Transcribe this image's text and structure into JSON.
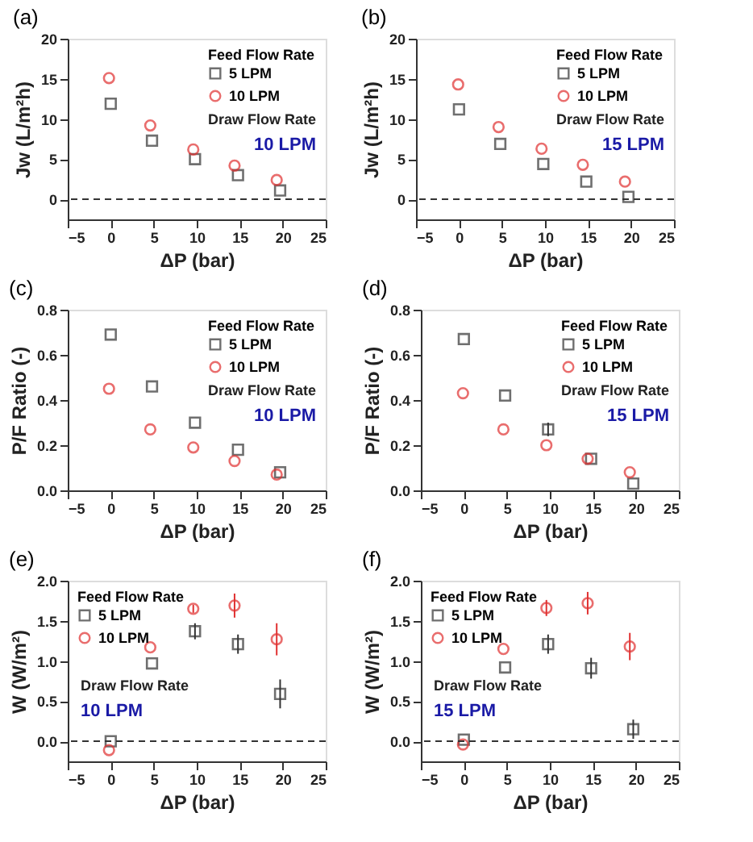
{
  "chart_data": [
    {
      "type": "scatter",
      "title": "(a)",
      "xlabel": "ΔP (bar)",
      "ylabel": "Jw (L/m²h)",
      "legend_title": "Feed Flow Rate",
      "legend": "top right",
      "grid": false,
      "xlim": [
        -5,
        25
      ],
      "xticks": [
        -5,
        0,
        5,
        10,
        15,
        20,
        25
      ],
      "ylim": [
        -2.5,
        20
      ],
      "yticks": [
        0,
        5,
        10,
        15,
        20
      ],
      "series": [
        {
          "name": "5 LPM",
          "color": "#333333",
          "marker": "square",
          "x": [
            0,
            4.8,
            9.8,
            14.8,
            19.7
          ],
          "values": [
            11.9,
            7.3,
            5.0,
            3.0,
            1.1
          ]
        },
        {
          "name": "10 LPM",
          "color": "#e03030",
          "marker": "circle",
          "x": [
            -0.2,
            4.6,
            9.6,
            14.4,
            19.3
          ],
          "values": [
            15.1,
            9.2,
            6.2,
            4.2,
            2.4
          ]
        }
      ],
      "ref_lines": [
        {
          "axis": "y",
          "value": 0,
          "line_style": "dashed",
          "color": "#333333"
        }
      ],
      "annotations": [
        "Draw Flow Rate",
        "10 LPM"
      ]
    },
    {
      "type": "scatter",
      "title": "(b)",
      "xlabel": "ΔP (bar)",
      "ylabel": "Jw (L/m²h)",
      "legend_title": "Feed Flow Rate",
      "legend": "top right",
      "grid": false,
      "xlim": [
        -5,
        25
      ],
      "xticks": [
        -5,
        0,
        5,
        10,
        15,
        20,
        25
      ],
      "ylim": [
        -2.5,
        20
      ],
      "yticks": [
        0,
        5,
        10,
        15,
        20
      ],
      "series": [
        {
          "name": "5 LPM",
          "color": "#333333",
          "marker": "square",
          "x": [
            0,
            4.8,
            9.8,
            14.8,
            19.7
          ],
          "values": [
            11.2,
            6.9,
            4.4,
            2.2,
            0.3
          ]
        },
        {
          "name": "10 LPM",
          "color": "#e03030",
          "marker": "circle",
          "x": [
            -0.1,
            4.6,
            9.6,
            14.4,
            19.3
          ],
          "values": [
            14.3,
            9.0,
            6.3,
            4.3,
            2.2
          ]
        }
      ],
      "ref_lines": [
        {
          "axis": "y",
          "value": 0,
          "line_style": "dashed",
          "color": "#333333"
        }
      ],
      "annotations": [
        "Draw Flow Rate",
        "15 LPM"
      ]
    },
    {
      "type": "scatter",
      "title": "(c)",
      "xlabel": "ΔP (bar)",
      "ylabel": "P/F Ratio (-)",
      "legend_title": "Feed Flow Rate",
      "legend": "top right",
      "grid": false,
      "xlim": [
        -5,
        25
      ],
      "xticks": [
        -5,
        0,
        5,
        10,
        15,
        20,
        25
      ],
      "ylim": [
        0,
        0.8
      ],
      "yticks": [
        {
          "value": 0,
          "label": "0.0"
        },
        0.2,
        0.4,
        0.6,
        0.8
      ],
      "series": [
        {
          "name": "5 LPM",
          "color": "#333333",
          "marker": "square",
          "x": [
            0,
            4.8,
            9.8,
            14.8,
            19.7
          ],
          "values": [
            0.69,
            0.46,
            0.3,
            0.18,
            0.08
          ]
        },
        {
          "name": "10 LPM",
          "color": "#e03030",
          "marker": "circle",
          "x": [
            -0.2,
            4.6,
            9.6,
            14.4,
            19.3
          ],
          "values": [
            0.45,
            0.27,
            0.19,
            0.13,
            0.07
          ]
        }
      ],
      "annotations": [
        "Draw Flow Rate",
        "10 LPM"
      ]
    },
    {
      "type": "scatter",
      "title": "(d)",
      "xlabel": "ΔP (bar)",
      "ylabel": "P/F Ratio (-)",
      "legend_title": "Feed Flow Rate",
      "legend": "top right",
      "grid": false,
      "xlim": [
        -5,
        25
      ],
      "xticks": [
        -5,
        0,
        5,
        10,
        15,
        20,
        25
      ],
      "ylim": [
        0,
        0.8
      ],
      "yticks": [
        {
          "value": 0,
          "label": "0.0"
        },
        0.2,
        0.4,
        0.6,
        0.8
      ],
      "series": [
        {
          "name": "5 LPM",
          "color": "#333333",
          "marker": "square",
          "x": [
            0,
            4.8,
            9.8,
            14.8,
            19.7
          ],
          "values": [
            0.67,
            0.42,
            0.27,
            0.14,
            0.03
          ],
          "errors": [
            null,
            null,
            0.03,
            null,
            null
          ]
        },
        {
          "name": "10 LPM",
          "color": "#e03030",
          "marker": "circle",
          "x": [
            -0.1,
            4.6,
            9.6,
            14.4,
            19.3
          ],
          "values": [
            0.43,
            0.27,
            0.2,
            0.14,
            0.08
          ]
        }
      ],
      "annotations": [
        "Draw Flow Rate",
        "15 LPM"
      ]
    },
    {
      "type": "scatter",
      "title": "(e)",
      "xlabel": "ΔP (bar)",
      "ylabel": "W (W/m²)",
      "legend_title": "Feed Flow Rate",
      "legend": "top left",
      "grid": false,
      "xlim": [
        -5,
        25
      ],
      "xticks": [
        -5,
        0,
        5,
        10,
        15,
        20,
        25
      ],
      "ylim": [
        -0.25,
        2.0
      ],
      "yticks": [
        {
          "value": 0,
          "label": "0.0"
        },
        0.5,
        {
          "value": 1,
          "label": "1.0"
        },
        1.5,
        {
          "value": 2,
          "label": "2.0"
        }
      ],
      "series": [
        {
          "name": "5 LPM",
          "color": "#333333",
          "marker": "square",
          "x": [
            0,
            4.8,
            9.8,
            14.8,
            19.7
          ],
          "values": [
            0.0,
            0.97,
            1.37,
            1.21,
            0.59
          ],
          "errors": [
            null,
            null,
            0.1,
            0.12,
            0.18
          ]
        },
        {
          "name": "10 LPM",
          "color": "#e03030",
          "marker": "circle",
          "x": [
            -0.2,
            4.6,
            9.6,
            14.4,
            19.3
          ],
          "values": [
            -0.11,
            1.17,
            1.65,
            1.69,
            1.27
          ],
          "errors": [
            null,
            null,
            0.05,
            0.15,
            0.2
          ]
        }
      ],
      "ref_lines": [
        {
          "axis": "y",
          "value": 0,
          "line_style": "dashed",
          "color": "#333333"
        }
      ],
      "annotations": [
        "Draw Flow Rate",
        "10 LPM"
      ]
    },
    {
      "type": "scatter",
      "title": "(f)",
      "xlabel": "ΔP (bar)",
      "ylabel": "W (W/m²)",
      "legend_title": "Feed Flow Rate",
      "legend": "top left",
      "grid": false,
      "xlim": [
        -5,
        25
      ],
      "xticks": [
        -5,
        0,
        5,
        10,
        15,
        20,
        25
      ],
      "ylim": [
        -0.25,
        2.0
      ],
      "yticks": [
        {
          "value": 0,
          "label": "0.0"
        },
        0.5,
        {
          "value": 1,
          "label": "1.0"
        },
        1.5,
        {
          "value": 2,
          "label": "2.0"
        }
      ],
      "series": [
        {
          "name": "5 LPM",
          "color": "#333333",
          "marker": "square",
          "x": [
            0,
            4.8,
            9.8,
            14.8,
            19.7
          ],
          "values": [
            0.02,
            0.92,
            1.21,
            0.91,
            0.15
          ],
          "errors": [
            null,
            null,
            0.12,
            0.13,
            0.12
          ]
        },
        {
          "name": "10 LPM",
          "color": "#e03030",
          "marker": "circle",
          "x": [
            -0.1,
            4.6,
            9.6,
            14.4,
            19.3
          ],
          "values": [
            -0.04,
            1.15,
            1.66,
            1.72,
            1.18
          ],
          "errors": [
            null,
            null,
            0.1,
            0.14,
            0.17
          ]
        }
      ],
      "ref_lines": [
        {
          "axis": "y",
          "value": 0,
          "line_style": "dashed",
          "color": "#333333"
        }
      ],
      "annotations": [
        "Draw Flow Rate",
        "15 LPM"
      ]
    }
  ]
}
